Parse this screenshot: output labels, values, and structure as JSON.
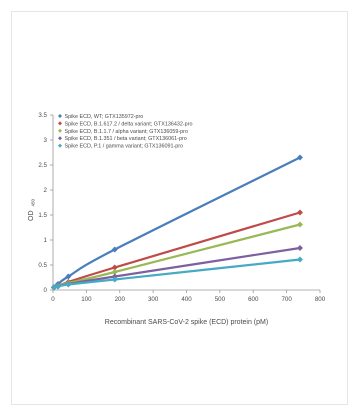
{
  "chart_data": {
    "type": "line",
    "xlabel": "Recombinant SARS-CoV-2 spike (ECD) protein (pM)",
    "ylabel_main": "OD",
    "ylabel_sub": "450",
    "xlim": [
      0,
      800
    ],
    "ylim": [
      0,
      3.5
    ],
    "xticks": [
      0,
      100,
      200,
      300,
      400,
      500,
      600,
      700,
      800
    ],
    "yticks": [
      0,
      0.5,
      1,
      1.5,
      2,
      2.5,
      3,
      3.5
    ],
    "x": [
      3,
      15,
      46,
      185,
      740
    ],
    "legend_position": "top-left",
    "grid": false,
    "series": [
      {
        "name": "Spike ECD, WT; GTX135972-pro",
        "color": "#4a7ebb",
        "values": [
          0.06,
          0.12,
          0.27,
          0.81,
          2.65
        ]
      },
      {
        "name": "Spike ECD, B.1.617.2 / delta variant; GTX136432-pro",
        "color": "#be4b48",
        "values": [
          0.05,
          0.08,
          0.16,
          0.45,
          1.55
        ]
      },
      {
        "name": "Spike ECD, B.1.1.7 / alpha variant; GTX136059-pro",
        "color": "#98b954",
        "values": [
          0.05,
          0.08,
          0.14,
          0.36,
          1.31
        ]
      },
      {
        "name": "Spike ECD, B.1.351 / beta variant; GTX136061-pro",
        "color": "#7d60a0",
        "values": [
          0.05,
          0.07,
          0.12,
          0.27,
          0.84
        ]
      },
      {
        "name": "Spike ECD, P.1 / gamma variant; GTX136091-pro",
        "color": "#46aac5",
        "values": [
          0.05,
          0.07,
          0.11,
          0.21,
          0.61
        ]
      }
    ]
  }
}
